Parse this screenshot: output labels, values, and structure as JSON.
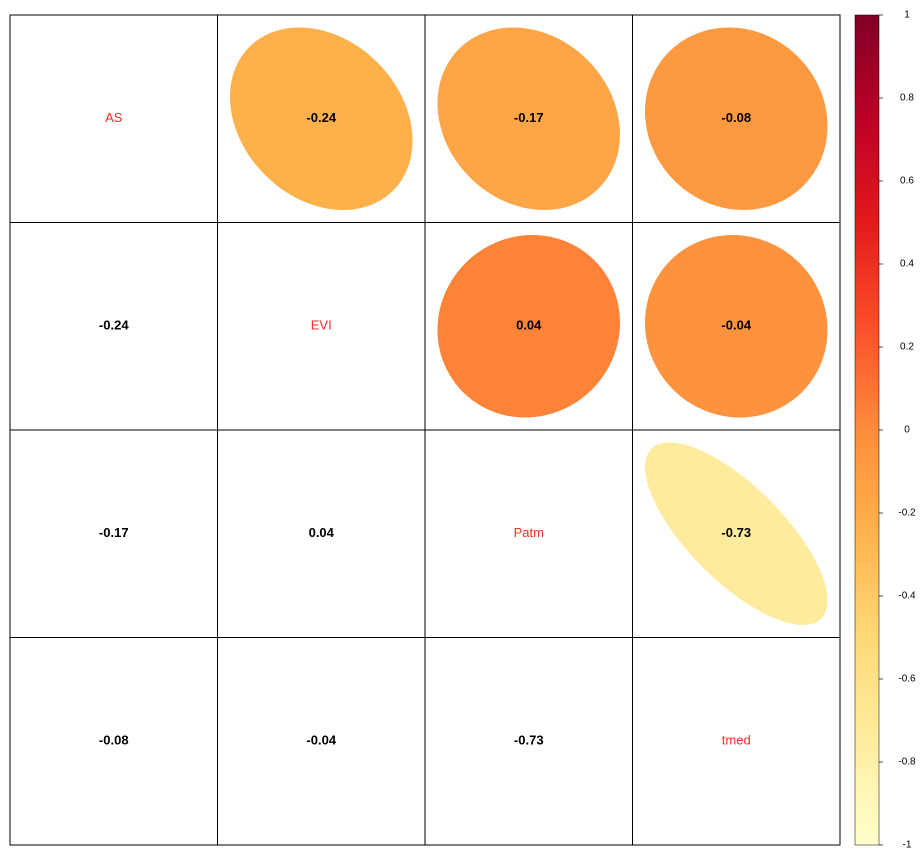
{
  "chart_data": {
    "type": "corrplot",
    "variables": [
      "AS",
      "EVI",
      "Patm",
      "tmed"
    ],
    "matrix": [
      [
        null,
        -0.24,
        -0.17,
        -0.08
      ],
      [
        -0.24,
        null,
        0.04,
        -0.04
      ],
      [
        -0.17,
        0.04,
        null,
        -0.73
      ],
      [
        -0.08,
        -0.04,
        -0.73,
        null
      ]
    ],
    "label_color": "#ff2a2a",
    "colormap": [
      "#ffffcc",
      "#ffeda0",
      "#fed976",
      "#feb24c",
      "#fd8d3c",
      "#fc4e2a",
      "#e31a1c",
      "#bd0026",
      "#800026"
    ],
    "clim": [
      -1,
      1
    ],
    "cticks": [
      1,
      0.8,
      0.6,
      0.4,
      0.2,
      0,
      -0.2,
      -0.4,
      -0.6,
      -0.8,
      -1
    ]
  }
}
